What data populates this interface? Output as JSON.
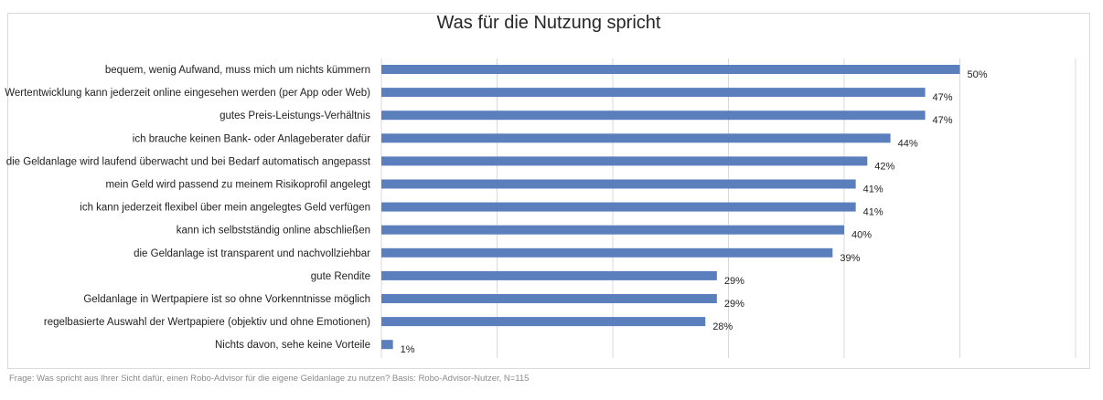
{
  "chart_data": {
    "type": "bar",
    "orientation": "horizontal",
    "title": "Was für die Nutzung spricht",
    "categories": [
      "bequem, wenig Aufwand, muss mich um nichts kümmern",
      "Wertentwicklung kann jederzeit online eingesehen werden (per App oder Web)",
      "gutes Preis-Leistungs-Verhältnis",
      "ich brauche keinen Bank- oder Anlageberater dafür",
      "die Geldanlage wird laufend überwacht und bei Bedarf automatisch angepasst",
      "mein Geld wird passend zu meinem Risikoprofil angelegt",
      "ich kann jederzeit flexibel über mein angelegtes Geld verfügen",
      "kann ich selbstständig online abschließen",
      "die Geldanlage ist transparent und nachvollziehbar",
      "gute Rendite",
      "Geldanlage in Wertpapiere ist so ohne Vorkenntnisse möglich",
      "regelbasierte Auswahl der Wertpapiere (objektiv und ohne Emotionen)",
      "Nichts davon, sehe keine Vorteile"
    ],
    "values": [
      50,
      47,
      47,
      44,
      42,
      41,
      41,
      40,
      39,
      29,
      29,
      28,
      1
    ],
    "value_labels": [
      "50%",
      "47%",
      "47%",
      "44%",
      "42%",
      "41%",
      "41%",
      "40%",
      "39%",
      "29%",
      "29%",
      "28%",
      "1%"
    ],
    "xlim": [
      0,
      60
    ],
    "grid": true,
    "bar_color": "#5b7fbd"
  },
  "footnote": "Frage: Was spricht aus Ihrer Sicht dafür, einen Robo-Advisor für die eigene Geldanlage zu nutzen? Basis: Robo-Advisor-Nutzer, N=115"
}
